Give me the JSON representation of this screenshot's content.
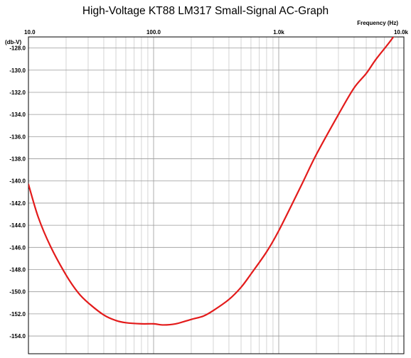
{
  "chart_data": {
    "type": "line",
    "title": "High-Voltage KT88 LM317 Small-Signal AC-Graph",
    "xlabel": "Frequency  (Hz)",
    "ylabel": "(db-V)",
    "x_scale": "log",
    "xlim": [
      10,
      10000
    ],
    "ylim": [
      -155.6,
      -127
    ],
    "x_ticks": [
      {
        "value": 10,
        "label": "10.0"
      },
      {
        "value": 100,
        "label": "100.0"
      },
      {
        "value": 1000,
        "label": "1.0k"
      },
      {
        "value": 10000,
        "label": "10.0k"
      }
    ],
    "y_ticks": [
      {
        "value": -128,
        "label": "-128.0"
      },
      {
        "value": -130,
        "label": "-130.0"
      },
      {
        "value": -132,
        "label": "-132.0"
      },
      {
        "value": -134,
        "label": "-134.0"
      },
      {
        "value": -136,
        "label": "-136.0"
      },
      {
        "value": -138,
        "label": "-138.0"
      },
      {
        "value": -140,
        "label": "-140.0"
      },
      {
        "value": -142,
        "label": "-142.0"
      },
      {
        "value": -144,
        "label": "-144.0"
      },
      {
        "value": -146,
        "label": "-146.0"
      },
      {
        "value": -148,
        "label": "-148.0"
      },
      {
        "value": -150,
        "label": "-150.0"
      },
      {
        "value": -152,
        "label": "-152.0"
      },
      {
        "value": -154,
        "label": "-154.0"
      }
    ],
    "grid": true,
    "line_color": "#e31b1b",
    "series": [
      {
        "x": [
          10,
          12,
          15,
          20,
          25,
          30,
          40,
          50,
          60,
          80,
          100,
          120,
          150,
          200,
          250,
          300,
          400,
          500,
          600,
          800,
          1000,
          1500,
          2000,
          3000,
          4000,
          5000,
          6000,
          8000,
          10000
        ],
        "y": [
          -140.3,
          -143.3,
          -145.9,
          -148.5,
          -150.1,
          -151.0,
          -152.1,
          -152.6,
          -152.8,
          -152.9,
          -152.9,
          -153.0,
          -152.9,
          -152.5,
          -152.2,
          -151.7,
          -150.7,
          -149.6,
          -148.4,
          -146.4,
          -144.5,
          -140.5,
          -137.6,
          -134.0,
          -131.6,
          -130.3,
          -129.0,
          -127.2,
          -125.5
        ]
      }
    ]
  }
}
